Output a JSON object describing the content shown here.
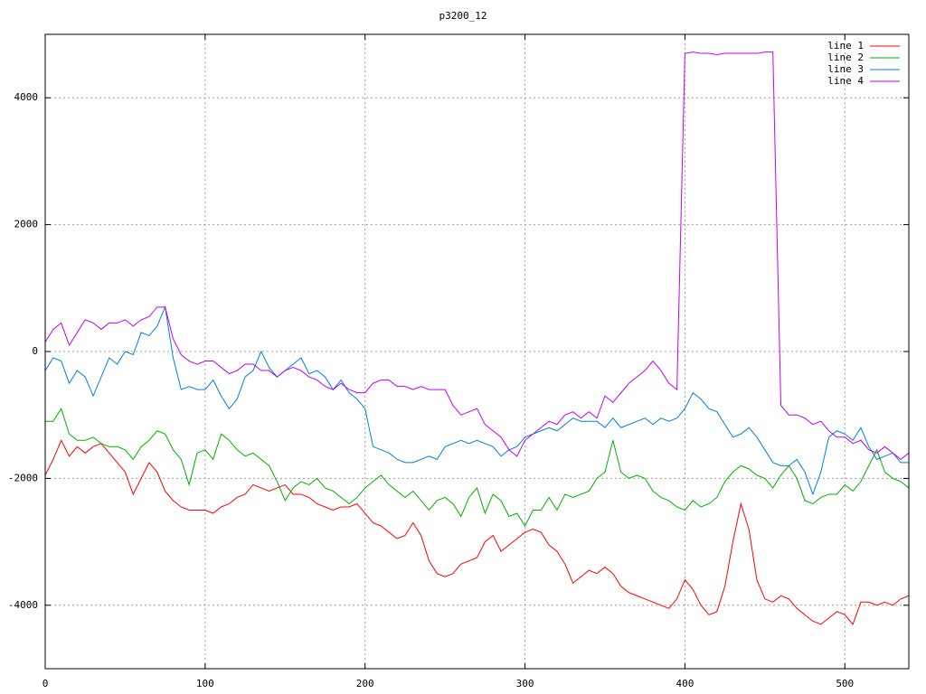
{
  "chart_data": {
    "type": "line",
    "title": "p3200_12",
    "x": [
      0,
      5,
      10,
      15,
      20,
      25,
      30,
      35,
      40,
      45,
      50,
      55,
      60,
      65,
      70,
      75,
      80,
      85,
      90,
      95,
      100,
      105,
      110,
      115,
      120,
      125,
      130,
      135,
      140,
      145,
      150,
      155,
      160,
      165,
      170,
      175,
      180,
      185,
      190,
      195,
      200,
      205,
      210,
      215,
      220,
      225,
      230,
      235,
      240,
      245,
      250,
      255,
      260,
      265,
      270,
      275,
      280,
      285,
      290,
      295,
      300,
      305,
      310,
      315,
      320,
      325,
      330,
      335,
      340,
      345,
      350,
      355,
      360,
      365,
      370,
      375,
      380,
      385,
      390,
      395,
      400,
      405,
      410,
      415,
      420,
      425,
      430,
      435,
      440,
      445,
      450,
      455,
      460,
      465,
      470,
      475,
      480,
      485,
      490,
      495,
      500,
      505,
      510,
      515,
      520,
      525,
      530,
      535,
      540
    ],
    "series": [
      {
        "name": "line 1",
        "color": "#ff0000",
        "values": [
          -1950,
          -1700,
          -1400,
          -1650,
          -1500,
          -1600,
          -1500,
          -1450,
          -1600,
          -1750,
          -1900,
          -2250,
          -2000,
          -1750,
          -1900,
          -2200,
          -2350,
          -2450,
          -2500,
          -2500,
          -2500,
          -2550,
          -2450,
          -2400,
          -2300,
          -2250,
          -2100,
          -2150,
          -2200,
          -2150,
          -2100,
          -2250,
          -2250,
          -2300,
          -2400,
          -2450,
          -2500,
          -2450,
          -2450,
          -2400,
          -2550,
          -2700,
          -2750,
          -2850,
          -2950,
          -2900,
          -2700,
          -2900,
          -3300,
          -3500,
          -3550,
          -3500,
          -3350,
          -3300,
          -3250,
          -3000,
          -2900,
          -3150,
          -3050,
          -2950,
          -2850,
          -2800,
          -2850,
          -3050,
          -3150,
          -3350,
          -3650,
          -3550,
          -3450,
          -3500,
          -3400,
          -3500,
          -3700,
          -3800,
          -3850,
          -3900,
          -3950,
          -4000,
          -4050,
          -3900,
          -3600,
          -3750,
          -4000,
          -4150,
          -4100,
          -3700,
          -3000,
          -2400,
          -2800,
          -3600,
          -3900,
          -3950,
          -3850,
          -3900,
          -4050,
          -4150,
          -4250,
          -4300,
          -4200,
          -4100,
          -4150,
          -4300,
          -3950,
          -3950,
          -4000,
          -3950,
          -4000,
          -3900,
          -3850
        ]
      },
      {
        "name": "line 2",
        "color": "#00b000",
        "values": [
          -1100,
          -1100,
          -900,
          -1300,
          -1400,
          -1400,
          -1350,
          -1450,
          -1500,
          -1500,
          -1550,
          -1700,
          -1500,
          -1400,
          -1250,
          -1300,
          -1550,
          -1700,
          -2100,
          -1600,
          -1550,
          -1700,
          -1300,
          -1400,
          -1550,
          -1650,
          -1600,
          -1700,
          -1800,
          -2050,
          -2350,
          -2150,
          -2050,
          -2100,
          -2000,
          -2150,
          -2200,
          -2300,
          -2400,
          -2300,
          -2150,
          -2050,
          -1950,
          -2100,
          -2200,
          -2300,
          -2200,
          -2350,
          -2500,
          -2350,
          -2300,
          -2400,
          -2600,
          -2300,
          -2150,
          -2550,
          -2250,
          -2350,
          -2600,
          -2550,
          -2750,
          -2500,
          -2500,
          -2300,
          -2500,
          -2250,
          -2300,
          -2250,
          -2200,
          -2000,
          -1900,
          -1400,
          -1900,
          -2000,
          -1950,
          -2000,
          -2200,
          -2300,
          -2350,
          -2450,
          -2500,
          -2350,
          -2450,
          -2400,
          -2300,
          -2050,
          -1900,
          -1800,
          -1850,
          -1950,
          -2000,
          -2150,
          -1950,
          -1800,
          -2000,
          -2350,
          -2400,
          -2300,
          -2250,
          -2250,
          -2100,
          -2200,
          -2050,
          -1800,
          -1550,
          -1900,
          -2000,
          -2050,
          -2150
        ]
      },
      {
        "name": "line 3",
        "color": "#0080e0",
        "values": [
          -300,
          -100,
          -150,
          -500,
          -300,
          -400,
          -700,
          -400,
          -100,
          -200,
          0,
          -50,
          300,
          250,
          400,
          700,
          -100,
          -600,
          -550,
          -600,
          -600,
          -450,
          -700,
          -900,
          -750,
          -400,
          -300,
          0,
          -250,
          -400,
          -300,
          -200,
          -100,
          -350,
          -300,
          -400,
          -600,
          -450,
          -650,
          -750,
          -900,
          -1500,
          -1550,
          -1600,
          -1700,
          -1750,
          -1750,
          -1700,
          -1650,
          -1700,
          -1500,
          -1450,
          -1400,
          -1450,
          -1400,
          -1450,
          -1500,
          -1650,
          -1550,
          -1500,
          -1350,
          -1300,
          -1250,
          -1200,
          -1250,
          -1150,
          -1050,
          -1100,
          -1100,
          -1100,
          -1200,
          -1050,
          -1200,
          -1150,
          -1100,
          -1050,
          -1150,
          -1050,
          -1100,
          -1050,
          -900,
          -650,
          -750,
          -900,
          -950,
          -1150,
          -1350,
          -1300,
          -1200,
          -1350,
          -1550,
          -1750,
          -1800,
          -1800,
          -1700,
          -1900,
          -2250,
          -1900,
          -1350,
          -1250,
          -1300,
          -1400,
          -1200,
          -1500,
          -1700,
          -1650,
          -1600,
          -1750,
          -1750
        ]
      },
      {
        "name": "line 4",
        "color": "#c000ff",
        "values": [
          150,
          350,
          450,
          100,
          300,
          500,
          450,
          350,
          450,
          450,
          500,
          400,
          500,
          550,
          700,
          700,
          200,
          -50,
          -150,
          -200,
          -150,
          -150,
          -250,
          -350,
          -300,
          -200,
          -200,
          -300,
          -300,
          -400,
          -300,
          -250,
          -300,
          -400,
          -450,
          -550,
          -600,
          -500,
          -600,
          -650,
          -650,
          -500,
          -450,
          -450,
          -550,
          -550,
          -600,
          -550,
          -600,
          -600,
          -600,
          -850,
          -1000,
          -950,
          -900,
          -1150,
          -1250,
          -1350,
          -1550,
          -1650,
          -1400,
          -1300,
          -1200,
          -1100,
          -1150,
          -1000,
          -950,
          -1050,
          -950,
          -1050,
          -700,
          -800,
          -650,
          -500,
          -400,
          -300,
          -150,
          -300,
          -500,
          -600,
          4700,
          4720,
          4700,
          4700,
          4680,
          4700,
          4700,
          4700,
          4700,
          4700,
          4720,
          4720,
          -850,
          -1000,
          -1000,
          -1050,
          -1150,
          -1100,
          -1250,
          -1350,
          -1350,
          -1450,
          -1400,
          -1550,
          -1600,
          -1500,
          -1600,
          -1700,
          -1600
        ]
      }
    ],
    "xlim": [
      0,
      540
    ],
    "ylim": [
      -5000,
      5000
    ],
    "xticks": [
      0,
      100,
      200,
      300,
      400,
      500
    ],
    "yticks": [
      -4000,
      -2000,
      0,
      2000,
      4000
    ],
    "grid": true,
    "legend": "top-right"
  }
}
